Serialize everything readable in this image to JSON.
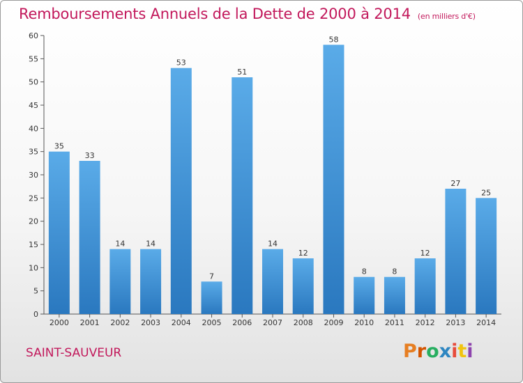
{
  "header": {
    "title": "Remboursements Annuels de la Dette de 2000 à 2014",
    "subtitle": "(en milliers d'€)"
  },
  "footer": {
    "commune": "SAINT-SAUVEUR",
    "logo_text": "Proxiti",
    "logo_colors": [
      "#e67e22",
      "#d35400",
      "#27ae60",
      "#2e86c1",
      "#e74c3c",
      "#f1c40f",
      "#8e44ad"
    ]
  },
  "chart_data": {
    "type": "bar",
    "title": "Remboursements Annuels de la Dette de 2000 à 2014",
    "xlabel": "",
    "ylabel": "",
    "categories": [
      "2000",
      "2001",
      "2002",
      "2003",
      "2004",
      "2005",
      "2006",
      "2007",
      "2008",
      "2009",
      "2010",
      "2011",
      "2012",
      "2013",
      "2014"
    ],
    "values": [
      35,
      33,
      14,
      14,
      53,
      7,
      51,
      14,
      12,
      58,
      8,
      8,
      12,
      27,
      25
    ],
    "ylim": [
      0,
      60
    ],
    "yticks": [
      0,
      5,
      10,
      15,
      20,
      25,
      30,
      35,
      40,
      45,
      50,
      55,
      60
    ],
    "grid": false,
    "bar_color": "#3d8fd4"
  }
}
